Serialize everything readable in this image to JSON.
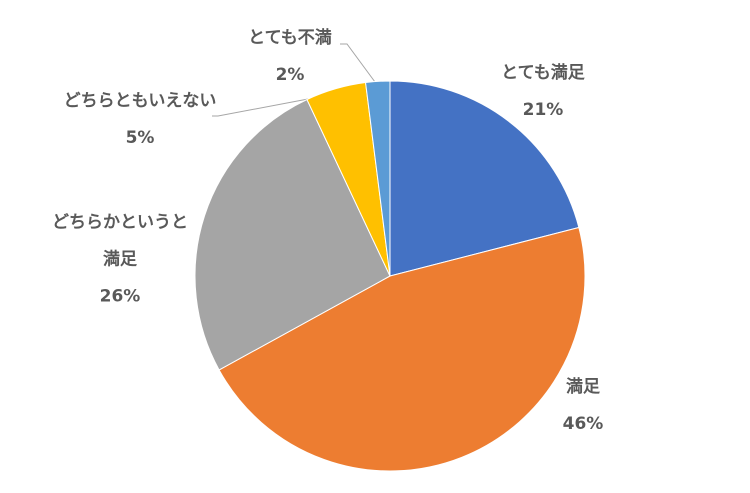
{
  "chart_data": {
    "type": "pie",
    "categories": [
      "とても満足",
      "満足",
      "どちらかというと満足",
      "どちらともいえない",
      "とても不満"
    ],
    "values": [
      21,
      46,
      26,
      5,
      2
    ],
    "value_labels": [
      "21%",
      "46%",
      "26%",
      "5%",
      "2%"
    ],
    "colors": [
      "#4472c4",
      "#ed7d31",
      "#a5a5a5",
      "#ffc000",
      "#5b9bd5"
    ]
  }
}
